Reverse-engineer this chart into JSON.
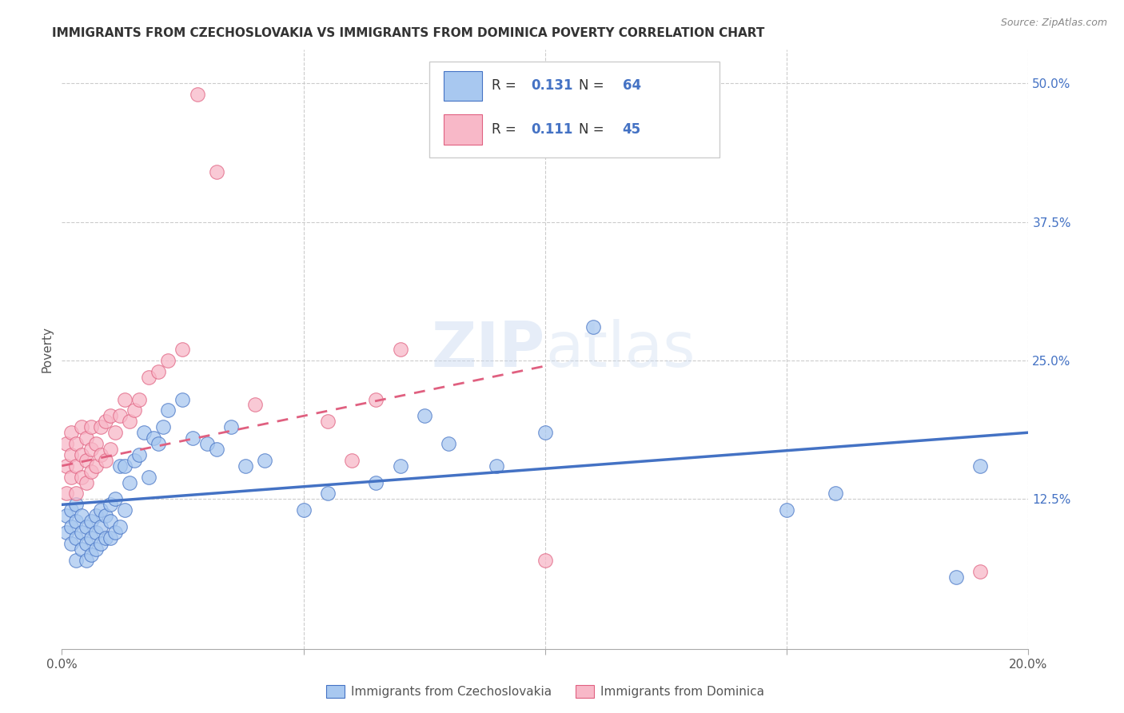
{
  "title": "IMMIGRANTS FROM CZECHOSLOVAKIA VS IMMIGRANTS FROM DOMINICA POVERTY CORRELATION CHART",
  "source": "Source: ZipAtlas.com",
  "ylabel": "Poverty",
  "legend_label1": "Immigrants from Czechoslovakia",
  "legend_label2": "Immigrants from Dominica",
  "R1": 0.131,
  "N1": 64,
  "R2": 0.111,
  "N2": 45,
  "xlim": [
    0.0,
    0.2
  ],
  "ylim": [
    -0.01,
    0.53
  ],
  "ytick_vals_right": [
    0.5,
    0.375,
    0.25,
    0.125
  ],
  "ytick_labels_right": [
    "50.0%",
    "37.5%",
    "25.0%",
    "12.5%"
  ],
  "color_blue": "#A8C8F0",
  "color_pink": "#F8B8C8",
  "color_blue_line": "#4472C4",
  "color_pink_line": "#E06080",
  "background_color": "#FFFFFF",
  "blue_dots_x": [
    0.001,
    0.001,
    0.002,
    0.002,
    0.002,
    0.003,
    0.003,
    0.003,
    0.003,
    0.004,
    0.004,
    0.004,
    0.005,
    0.005,
    0.005,
    0.006,
    0.006,
    0.006,
    0.007,
    0.007,
    0.007,
    0.008,
    0.008,
    0.008,
    0.009,
    0.009,
    0.01,
    0.01,
    0.01,
    0.011,
    0.011,
    0.012,
    0.012,
    0.013,
    0.013,
    0.014,
    0.015,
    0.016,
    0.017,
    0.018,
    0.019,
    0.02,
    0.021,
    0.022,
    0.025,
    0.027,
    0.03,
    0.032,
    0.035,
    0.038,
    0.042,
    0.05,
    0.055,
    0.065,
    0.07,
    0.075,
    0.08,
    0.09,
    0.1,
    0.11,
    0.15,
    0.16,
    0.185,
    0.19
  ],
  "blue_dots_y": [
    0.095,
    0.11,
    0.085,
    0.1,
    0.115,
    0.07,
    0.09,
    0.105,
    0.12,
    0.08,
    0.095,
    0.11,
    0.07,
    0.085,
    0.1,
    0.075,
    0.09,
    0.105,
    0.08,
    0.095,
    0.11,
    0.085,
    0.1,
    0.115,
    0.09,
    0.11,
    0.09,
    0.105,
    0.12,
    0.095,
    0.125,
    0.1,
    0.155,
    0.115,
    0.155,
    0.14,
    0.16,
    0.165,
    0.185,
    0.145,
    0.18,
    0.175,
    0.19,
    0.205,
    0.215,
    0.18,
    0.175,
    0.17,
    0.19,
    0.155,
    0.16,
    0.115,
    0.13,
    0.14,
    0.155,
    0.2,
    0.175,
    0.155,
    0.185,
    0.28,
    0.115,
    0.13,
    0.055,
    0.155
  ],
  "pink_dots_x": [
    0.001,
    0.001,
    0.001,
    0.002,
    0.002,
    0.002,
    0.003,
    0.003,
    0.003,
    0.004,
    0.004,
    0.004,
    0.005,
    0.005,
    0.005,
    0.006,
    0.006,
    0.006,
    0.007,
    0.007,
    0.008,
    0.008,
    0.009,
    0.009,
    0.01,
    0.01,
    0.011,
    0.012,
    0.013,
    0.014,
    0.015,
    0.016,
    0.018,
    0.02,
    0.022,
    0.025,
    0.028,
    0.032,
    0.04,
    0.055,
    0.06,
    0.065,
    0.07,
    0.1,
    0.19
  ],
  "pink_dots_y": [
    0.13,
    0.155,
    0.175,
    0.145,
    0.165,
    0.185,
    0.13,
    0.155,
    0.175,
    0.145,
    0.165,
    0.19,
    0.14,
    0.16,
    0.18,
    0.15,
    0.17,
    0.19,
    0.155,
    0.175,
    0.165,
    0.19,
    0.16,
    0.195,
    0.17,
    0.2,
    0.185,
    0.2,
    0.215,
    0.195,
    0.205,
    0.215,
    0.235,
    0.24,
    0.25,
    0.26,
    0.49,
    0.42,
    0.21,
    0.195,
    0.16,
    0.215,
    0.26,
    0.07,
    0.06
  ],
  "blue_trend_x": [
    0.0,
    0.2
  ],
  "blue_trend_y": [
    0.12,
    0.185
  ],
  "pink_trend_x": [
    0.0,
    0.1
  ],
  "pink_trend_y": [
    0.155,
    0.245
  ]
}
